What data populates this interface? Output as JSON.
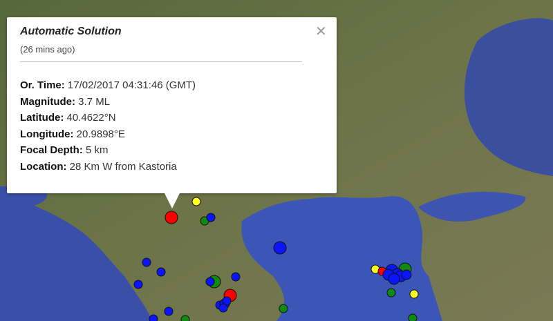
{
  "popup": {
    "title": "Automatic Solution",
    "ago": "(26 mins ago)",
    "close_icon": "close-x",
    "rows": [
      {
        "label": "Or. Time:",
        "value": "17/02/2017  04:31:46 (GMT)"
      },
      {
        "label": "Magnitude:",
        "value": "3.7 ML"
      },
      {
        "label": "Latitude:",
        "value": "40.4622°N"
      },
      {
        "label": "Longitude:",
        "value": "20.9898°E"
      },
      {
        "label": "Focal Depth:",
        "value": "5 km"
      },
      {
        "label": "Location:",
        "value": "28 Km W from Kastoria"
      }
    ]
  },
  "colors": {
    "red": "#ff0000",
    "blue": "#0a14ff",
    "green": "#118a11",
    "yellow": "#ffff22",
    "sea": "#3a54b8"
  }
}
